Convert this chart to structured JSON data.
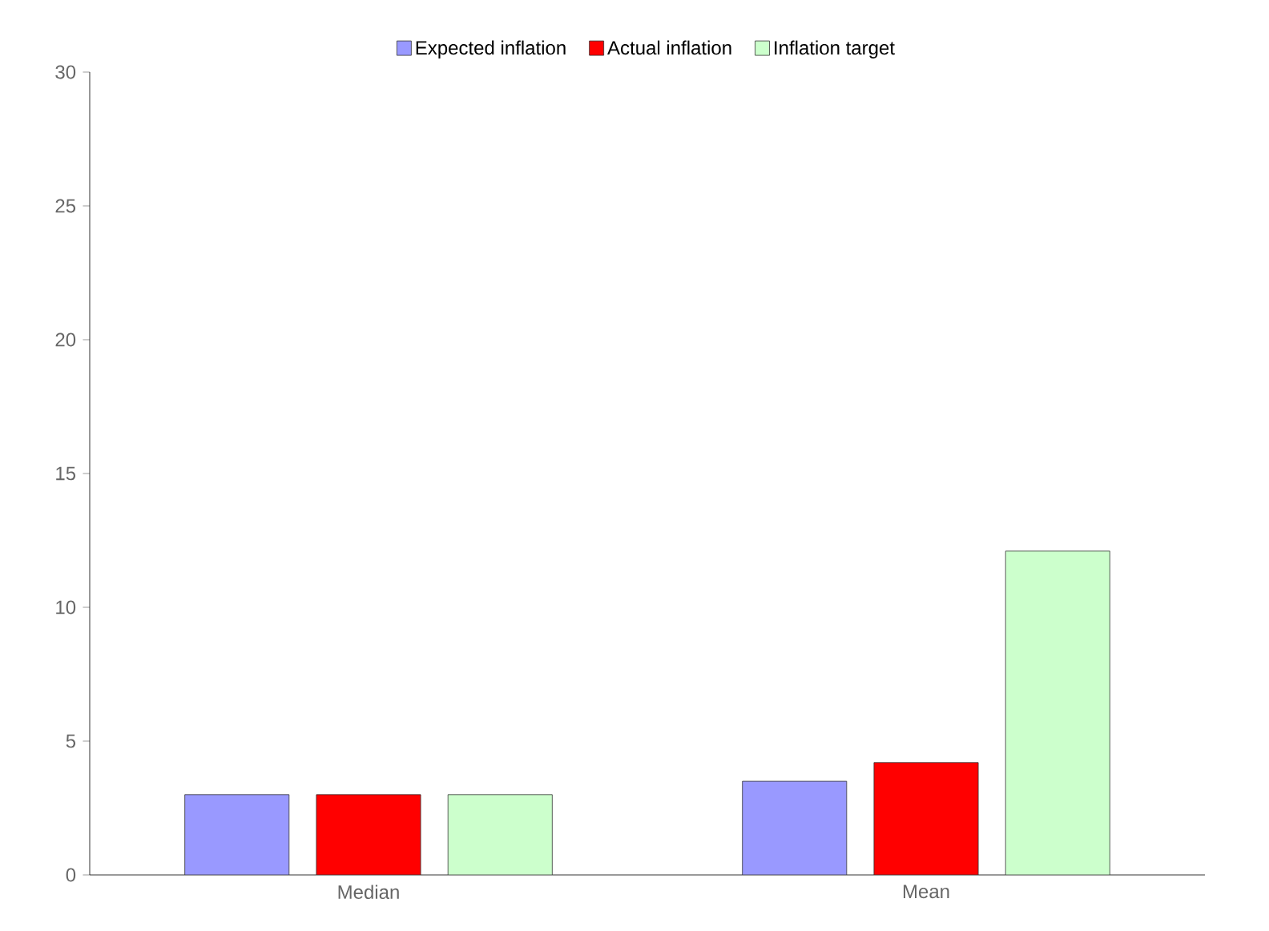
{
  "chart_data": {
    "type": "bar",
    "categories": [
      "Median",
      "Mean"
    ],
    "series": [
      {
        "name": "Expected inflation",
        "color": "#9999ff",
        "values": [
          3.0,
          3.5
        ]
      },
      {
        "name": "Actual inflation",
        "color": "#ff0000",
        "values": [
          3.0,
          4.2
        ]
      },
      {
        "name": "Inflation target",
        "color": "#ccffcc",
        "values": [
          3.0,
          12.1
        ]
      }
    ],
    "ylim": [
      0,
      30
    ],
    "yticks": [
      0,
      5,
      10,
      15,
      20,
      25,
      30
    ],
    "grid": false,
    "legend": "top"
  }
}
